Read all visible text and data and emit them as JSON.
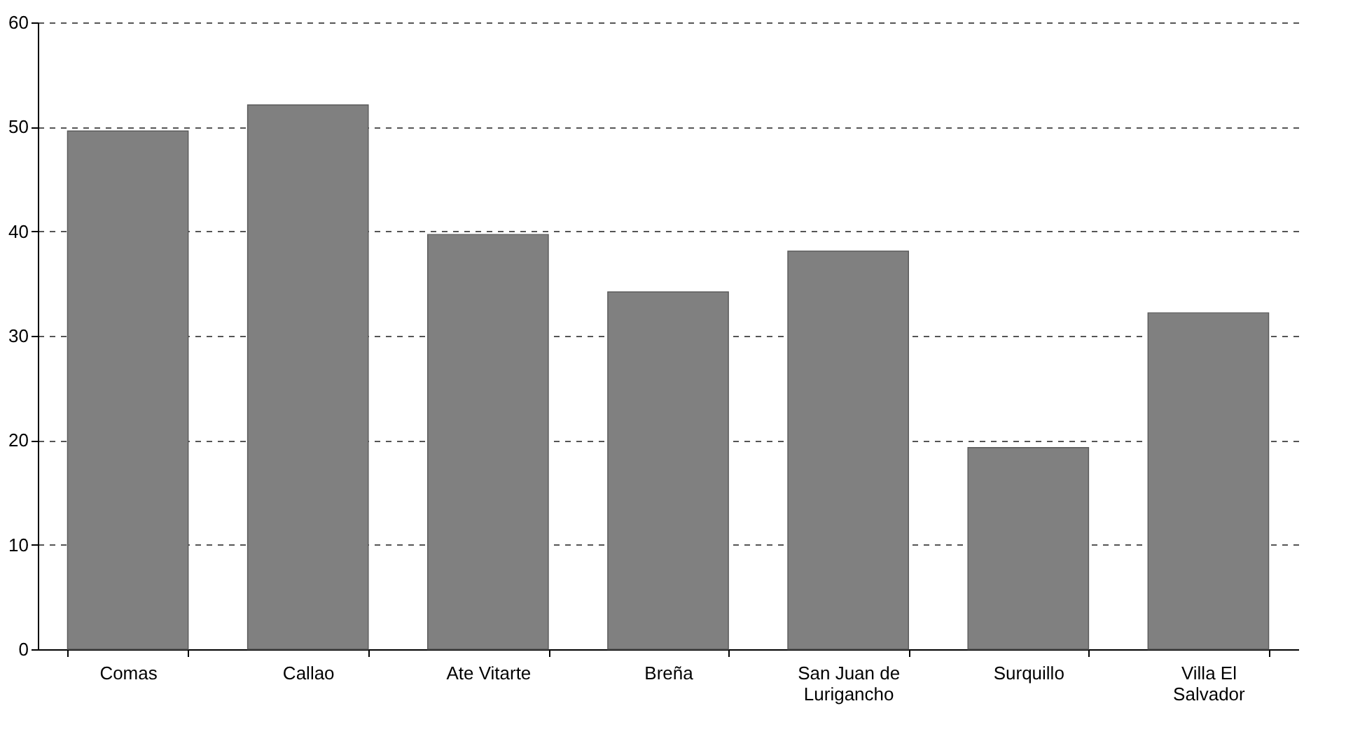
{
  "chart_data": {
    "type": "bar",
    "categories": [
      "Comas",
      "Callao",
      "Ate Vitarte",
      "Breña",
      "San Juan de Lurigancho",
      "Surquillo",
      "Villa El Salvador"
    ],
    "values": [
      49.6,
      52.1,
      39.7,
      34.2,
      38.1,
      19.3,
      32.2
    ],
    "color": "#808080",
    "ylim": [
      0,
      60
    ],
    "yticks": [
      0,
      10,
      20,
      30,
      40,
      50,
      60
    ],
    "grid": "y",
    "line_style": "dashed"
  }
}
